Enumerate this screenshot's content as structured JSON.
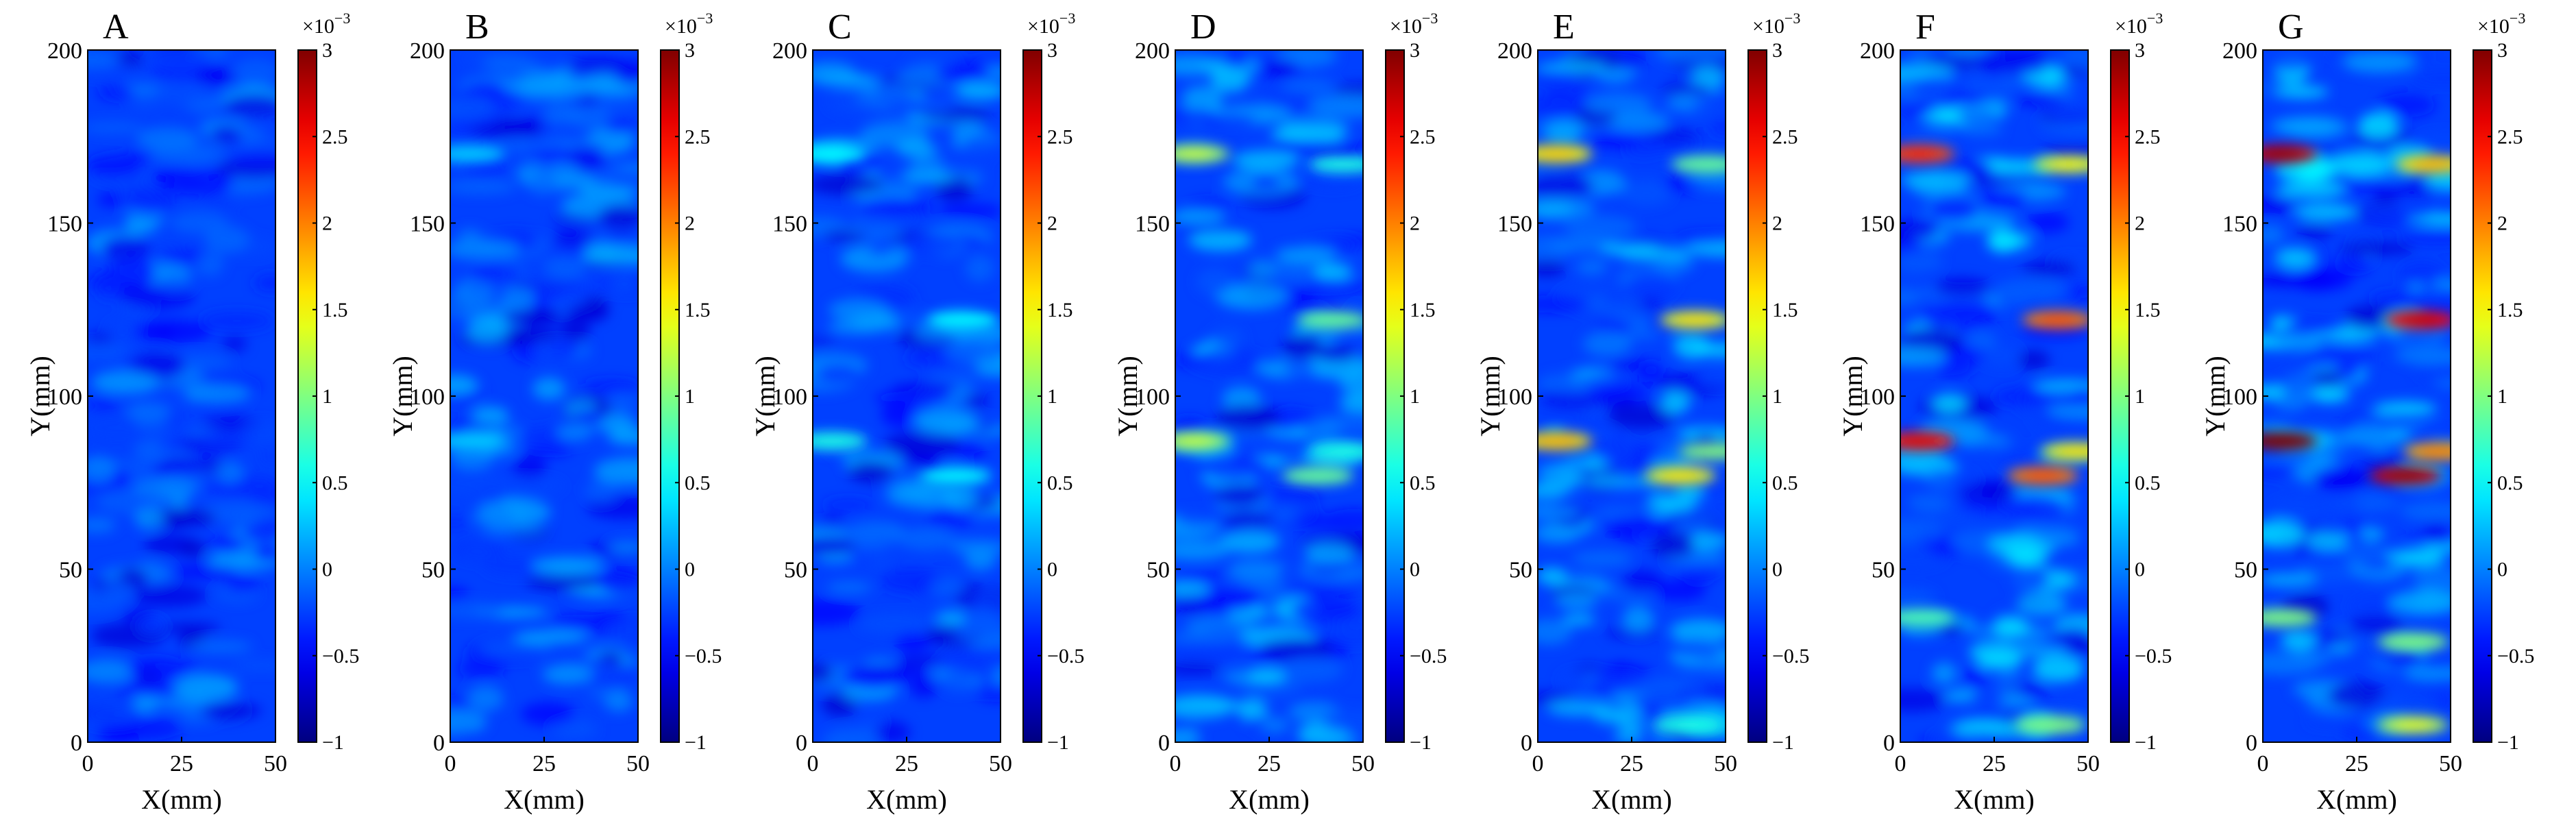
{
  "chart_data": [
    {
      "type": "heatmap",
      "panel": "A",
      "xlabel": "X(mm)",
      "ylabel": "Y(mm)",
      "xlim": [
        0,
        50
      ],
      "ylim": [
        0,
        200
      ],
      "xticks": [
        0,
        25,
        50
      ],
      "yticks": [
        0,
        50,
        100,
        150,
        200
      ],
      "colorbar": {
        "colormap": "jet",
        "range": [
          -1,
          3
        ],
        "ticks": [
          -1,
          -0.5,
          0,
          0.5,
          1,
          1.5,
          2,
          2.5,
          3
        ],
        "tick_labels": [
          "−1",
          "−0.5",
          "0",
          "0.5",
          "1",
          "1.5",
          "2",
          "2.5",
          "3"
        ],
        "exponent_label": "×10",
        "exponent": "−3"
      },
      "hotspots": []
    },
    {
      "type": "heatmap",
      "panel": "B",
      "xlabel": "X(mm)",
      "ylabel": "Y(mm)",
      "xlim": [
        0,
        50
      ],
      "ylim": [
        0,
        200
      ],
      "xticks": [
        0,
        25,
        50
      ],
      "yticks": [
        0,
        50,
        100,
        150,
        200
      ],
      "colorbar": {
        "colormap": "jet",
        "range": [
          -1,
          3
        ],
        "ticks": [
          -1,
          -0.5,
          0,
          0.5,
          1,
          1.5,
          2,
          2.5,
          3
        ],
        "tick_labels": [
          "−1",
          "−0.5",
          "0",
          "0.5",
          "1",
          "1.5",
          "2",
          "2.5",
          "3"
        ],
        "exponent_label": "×10",
        "exponent": "−3"
      },
      "hotspots": [
        {
          "x": 5,
          "y": 170,
          "value": 0.3
        },
        {
          "x": 5,
          "y": 87,
          "value": 0.3
        }
      ]
    },
    {
      "type": "heatmap",
      "panel": "C",
      "xlabel": "X(mm)",
      "ylabel": "Y(mm)",
      "xlim": [
        0,
        50
      ],
      "ylim": [
        0,
        200
      ],
      "xticks": [
        0,
        25,
        50
      ],
      "yticks": [
        0,
        50,
        100,
        150,
        200
      ],
      "colorbar": {
        "colormap": "jet",
        "range": [
          -1,
          3
        ],
        "ticks": [
          -1,
          -0.5,
          0,
          0.5,
          1,
          1.5,
          2,
          2.5,
          3
        ],
        "tick_labels": [
          "−1",
          "−0.5",
          "0",
          "0.5",
          "1",
          "1.5",
          "2",
          "2.5",
          "3"
        ],
        "exponent_label": "×10",
        "exponent": "−3"
      },
      "hotspots": [
        {
          "x": 5,
          "y": 170,
          "value": 0.5
        },
        {
          "x": 40,
          "y": 122,
          "value": 0.5
        },
        {
          "x": 5,
          "y": 87,
          "value": 0.6
        },
        {
          "x": 38,
          "y": 77,
          "value": 0.5
        }
      ]
    },
    {
      "type": "heatmap",
      "panel": "D",
      "xlabel": "X(mm)",
      "ylabel": "Y(mm)",
      "xlim": [
        0,
        50
      ],
      "ylim": [
        0,
        200
      ],
      "xticks": [
        0,
        25,
        50
      ],
      "yticks": [
        0,
        50,
        100,
        150,
        200
      ],
      "colorbar": {
        "colormap": "jet",
        "range": [
          -1,
          3
        ],
        "ticks": [
          -1,
          -0.5,
          0,
          0.5,
          1,
          1.5,
          2,
          2.5,
          3
        ],
        "tick_labels": [
          "−1",
          "−0.5",
          "0",
          "0.5",
          "1",
          "1.5",
          "2",
          "2.5",
          "3"
        ],
        "exponent_label": "×10",
        "exponent": "−3"
      },
      "hotspots": [
        {
          "x": 5,
          "y": 170,
          "value": 1.1
        },
        {
          "x": 45,
          "y": 167,
          "value": 0.6
        },
        {
          "x": 42,
          "y": 122,
          "value": 0.9
        },
        {
          "x": 5,
          "y": 87,
          "value": 1.1
        },
        {
          "x": 38,
          "y": 77,
          "value": 0.9
        },
        {
          "x": 45,
          "y": 84,
          "value": 0.6
        }
      ]
    },
    {
      "type": "heatmap",
      "panel": "E",
      "xlabel": "X(mm)",
      "ylabel": "Y(mm)",
      "xlim": [
        0,
        50
      ],
      "ylim": [
        0,
        200
      ],
      "xticks": [
        0,
        25,
        50
      ],
      "yticks": [
        0,
        50,
        100,
        150,
        200
      ],
      "colorbar": {
        "colormap": "jet",
        "range": [
          -1,
          3
        ],
        "ticks": [
          -1,
          -0.5,
          0,
          0.5,
          1,
          1.5,
          2,
          2.5,
          3
        ],
        "tick_labels": [
          "−1",
          "−0.5",
          "0",
          "0.5",
          "1",
          "1.5",
          "2",
          "2.5",
          "3"
        ],
        "exponent_label": "×10",
        "exponent": "−3"
      },
      "hotspots": [
        {
          "x": 5,
          "y": 170,
          "value": 1.5
        },
        {
          "x": 45,
          "y": 167,
          "value": 0.9
        },
        {
          "x": 42,
          "y": 122,
          "value": 1.4
        },
        {
          "x": 5,
          "y": 87,
          "value": 1.6
        },
        {
          "x": 38,
          "y": 77,
          "value": 1.4
        },
        {
          "x": 47,
          "y": 84,
          "value": 1.0
        },
        {
          "x": 40,
          "y": 5,
          "value": 0.6
        }
      ]
    },
    {
      "type": "heatmap",
      "panel": "F",
      "xlabel": "X(mm)",
      "ylabel": "Y(mm)",
      "xlim": [
        0,
        50
      ],
      "ylim": [
        0,
        200
      ],
      "xticks": [
        0,
        25,
        50
      ],
      "yticks": [
        0,
        50,
        100,
        150,
        200
      ],
      "colorbar": {
        "colormap": "jet",
        "range": [
          -1,
          3
        ],
        "ticks": [
          -1,
          -0.5,
          0,
          0.5,
          1,
          1.5,
          2,
          2.5,
          3
        ],
        "tick_labels": [
          "−1",
          "−0.5",
          "0",
          "0.5",
          "1",
          "1.5",
          "2",
          "2.5",
          "3"
        ],
        "exponent_label": "×10",
        "exponent": "−3"
      },
      "hotspots": [
        {
          "x": 5,
          "y": 170,
          "value": 2.2
        },
        {
          "x": 45,
          "y": 167,
          "value": 1.3
        },
        {
          "x": 42,
          "y": 122,
          "value": 2.0
        },
        {
          "x": 5,
          "y": 87,
          "value": 2.4
        },
        {
          "x": 38,
          "y": 77,
          "value": 2.0
        },
        {
          "x": 47,
          "y": 84,
          "value": 1.4
        },
        {
          "x": 40,
          "y": 5,
          "value": 1.0
        },
        {
          "x": 5,
          "y": 36,
          "value": 0.8
        }
      ]
    },
    {
      "type": "heatmap",
      "panel": "G",
      "xlabel": "X(mm)",
      "ylabel": "Y(mm)",
      "xlim": [
        0,
        50
      ],
      "ylim": [
        0,
        200
      ],
      "xticks": [
        0,
        25,
        50
      ],
      "yticks": [
        0,
        50,
        100,
        150,
        200
      ],
      "colorbar": {
        "colormap": "jet",
        "range": [
          -1,
          3
        ],
        "ticks": [
          -1,
          -0.5,
          0,
          0.5,
          1,
          1.5,
          2,
          2.5,
          3
        ],
        "tick_labels": [
          "−1",
          "−0.5",
          "0",
          "0.5",
          "1",
          "1.5",
          "2",
          "2.5",
          "3"
        ],
        "exponent_label": "×10",
        "exponent": "−3"
      },
      "hotspots": [
        {
          "x": 5,
          "y": 170,
          "value": 2.7
        },
        {
          "x": 45,
          "y": 167,
          "value": 1.6
        },
        {
          "x": 42,
          "y": 122,
          "value": 2.5
        },
        {
          "x": 5,
          "y": 87,
          "value": 3.0
        },
        {
          "x": 38,
          "y": 77,
          "value": 2.7
        },
        {
          "x": 47,
          "y": 84,
          "value": 1.8
        },
        {
          "x": 40,
          "y": 5,
          "value": 1.2
        },
        {
          "x": 5,
          "y": 36,
          "value": 1.0
        },
        {
          "x": 40,
          "y": 29,
          "value": 1.0
        }
      ]
    }
  ]
}
